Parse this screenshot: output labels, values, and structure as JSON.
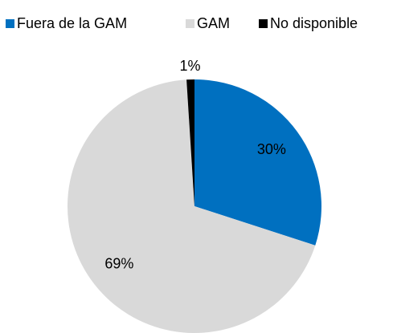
{
  "chart_data": {
    "type": "pie",
    "categories": [
      "Fuera de la GAM",
      "GAM",
      "No disponible"
    ],
    "values": [
      30,
      69,
      1
    ],
    "value_labels": [
      "30%",
      "69%",
      "1%"
    ],
    "colors": [
      "#0070c0",
      "#d9d9d9",
      "#000000"
    ],
    "legend": "top"
  }
}
